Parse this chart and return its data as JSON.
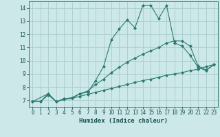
{
  "xlabel": "Humidex (Indice chaleur)",
  "xlim": [
    -0.5,
    23.5
  ],
  "ylim": [
    6.5,
    14.5
  ],
  "xticks": [
    0,
    1,
    2,
    3,
    4,
    5,
    6,
    7,
    8,
    9,
    10,
    11,
    12,
    13,
    14,
    15,
    16,
    17,
    18,
    19,
    20,
    21,
    22,
    23
  ],
  "yticks": [
    7,
    8,
    9,
    10,
    11,
    12,
    13,
    14
  ],
  "bg_color": "#cce8e8",
  "grid_color": "#aacccc",
  "line_color": "#2a7a70",
  "line1_x": [
    0,
    1,
    2,
    3,
    4,
    5,
    6,
    7,
    8,
    9,
    10,
    11,
    12,
    13,
    14,
    15,
    16,
    17,
    18,
    19,
    20,
    21,
    22,
    23
  ],
  "line1_y": [
    6.9,
    6.9,
    7.5,
    6.9,
    7.1,
    7.15,
    7.5,
    7.6,
    8.5,
    9.55,
    11.6,
    12.4,
    13.1,
    12.5,
    14.2,
    14.2,
    13.2,
    14.2,
    11.35,
    11.1,
    10.4,
    9.5,
    9.25,
    9.7
  ],
  "line2_x": [
    0,
    2,
    3,
    4,
    5,
    6,
    7,
    8,
    9,
    10,
    11,
    12,
    13,
    14,
    15,
    16,
    17,
    18,
    19,
    20,
    21,
    22,
    23
  ],
  "line2_y": [
    6.9,
    7.5,
    6.9,
    7.1,
    7.2,
    7.5,
    7.7,
    8.2,
    8.6,
    9.1,
    9.5,
    9.9,
    10.2,
    10.5,
    10.75,
    11.0,
    11.35,
    11.5,
    11.5,
    11.1,
    9.6,
    9.3,
    9.7
  ],
  "line3_x": [
    0,
    1,
    2,
    3,
    4,
    5,
    6,
    7,
    8,
    9,
    10,
    11,
    12,
    13,
    14,
    15,
    16,
    17,
    18,
    19,
    20,
    21,
    22,
    23
  ],
  "line3_y": [
    6.9,
    6.9,
    7.4,
    6.9,
    7.05,
    7.15,
    7.3,
    7.45,
    7.6,
    7.75,
    7.9,
    8.05,
    8.2,
    8.35,
    8.5,
    8.6,
    8.75,
    8.9,
    9.0,
    9.1,
    9.25,
    9.35,
    9.55,
    9.7
  ]
}
